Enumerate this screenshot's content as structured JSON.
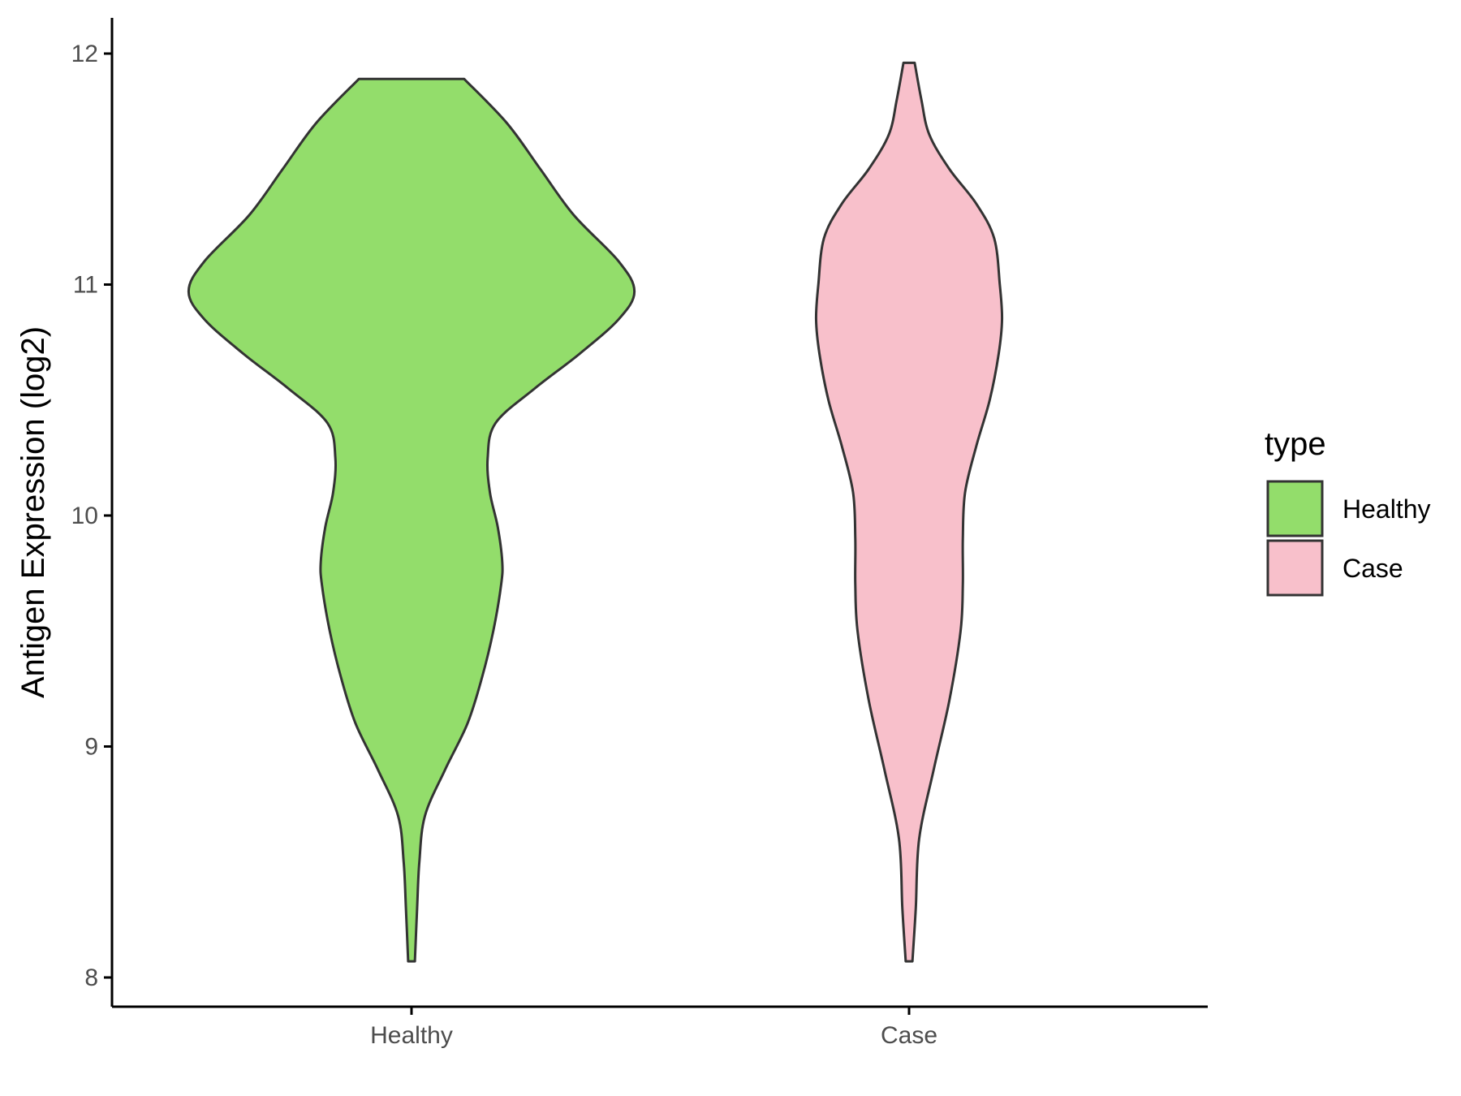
{
  "chart_data": {
    "type": "violin",
    "title": "",
    "xlabel": "",
    "ylabel": "Antigen Expression (log2)",
    "ylim": [
      7.9,
      12.15
    ],
    "yticks": [
      8,
      9,
      10,
      11,
      12
    ],
    "categories": [
      "Healthy",
      "Case"
    ],
    "grid": false,
    "legend": {
      "title": "type",
      "position": "right",
      "entries": [
        "Healthy",
        "Case"
      ]
    },
    "colors": {
      "Healthy": "#93dd6b",
      "Case": "#f8c0cb",
      "outline": "#333333",
      "axis": "#000000"
    },
    "series": [
      {
        "category": "Healthy",
        "min": 8.07,
        "max": 11.89,
        "density_profile": [
          [
            8.07,
            0.03
          ],
          [
            8.3,
            0.05
          ],
          [
            8.5,
            0.07
          ],
          [
            8.7,
            0.12
          ],
          [
            8.9,
            0.3
          ],
          [
            9.1,
            0.5
          ],
          [
            9.3,
            0.63
          ],
          [
            9.5,
            0.73
          ],
          [
            9.7,
            0.8
          ],
          [
            9.8,
            0.81
          ],
          [
            9.95,
            0.77
          ],
          [
            10.1,
            0.7
          ],
          [
            10.25,
            0.68
          ],
          [
            10.4,
            0.75
          ],
          [
            10.55,
            1.1
          ],
          [
            10.7,
            1.5
          ],
          [
            10.85,
            1.85
          ],
          [
            10.97,
            1.99
          ],
          [
            11.1,
            1.85
          ],
          [
            11.3,
            1.45
          ],
          [
            11.5,
            1.15
          ],
          [
            11.7,
            0.85
          ],
          [
            11.89,
            0.47
          ]
        ]
      },
      {
        "category": "Case",
        "min": 8.07,
        "max": 11.96,
        "density_profile": [
          [
            8.07,
            0.03
          ],
          [
            8.3,
            0.06
          ],
          [
            8.6,
            0.09
          ],
          [
            8.9,
            0.22
          ],
          [
            9.2,
            0.36
          ],
          [
            9.5,
            0.46
          ],
          [
            9.7,
            0.48
          ],
          [
            9.9,
            0.48
          ],
          [
            10.1,
            0.5
          ],
          [
            10.3,
            0.6
          ],
          [
            10.5,
            0.72
          ],
          [
            10.7,
            0.8
          ],
          [
            10.85,
            0.83
          ],
          [
            11.0,
            0.81
          ],
          [
            11.2,
            0.76
          ],
          [
            11.35,
            0.6
          ],
          [
            11.5,
            0.36
          ],
          [
            11.65,
            0.18
          ],
          [
            11.8,
            0.11
          ],
          [
            11.96,
            0.05
          ]
        ]
      }
    ]
  }
}
